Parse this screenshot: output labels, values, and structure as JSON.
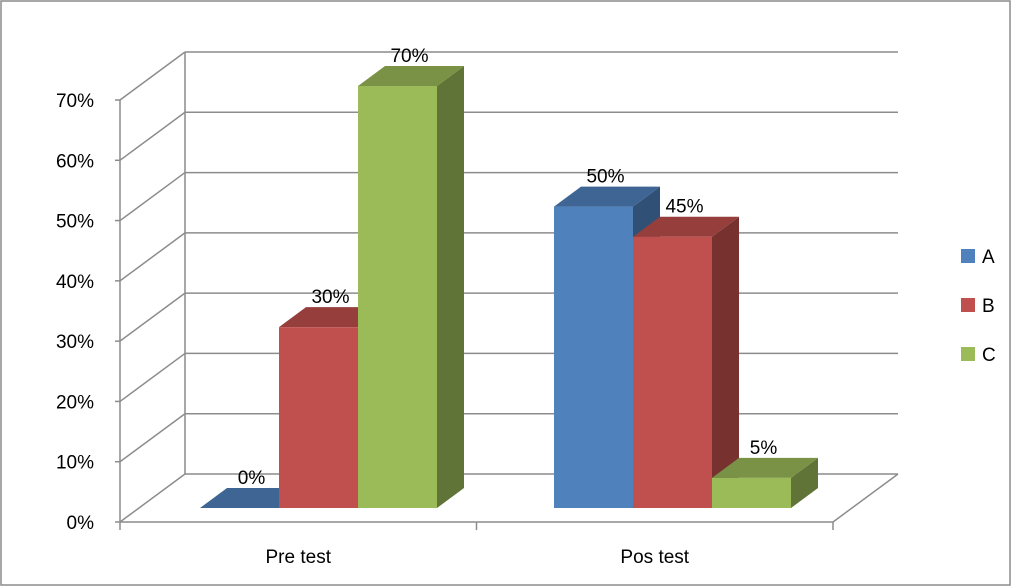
{
  "chart_data": {
    "type": "bar",
    "style": "3d-clustered-column",
    "categories": [
      "Pre test",
      "Pos test"
    ],
    "series": [
      {
        "name": "A",
        "color": "#4f81bd",
        "values": [
          0,
          50
        ],
        "labels": [
          "0%",
          "50%"
        ]
      },
      {
        "name": "B",
        "color": "#c0504d",
        "values": [
          30,
          45
        ],
        "labels": [
          "30%",
          "45%"
        ]
      },
      {
        "name": "C",
        "color": "#9bbb59",
        "values": [
          70,
          5
        ],
        "labels": [
          "70%",
          "5%"
        ]
      }
    ],
    "yticks": [
      "0%",
      "10%",
      "20%",
      "30%",
      "40%",
      "50%",
      "60%",
      "70%"
    ],
    "ylim": [
      0,
      70
    ],
    "grid": true,
    "legend_position": "right"
  }
}
